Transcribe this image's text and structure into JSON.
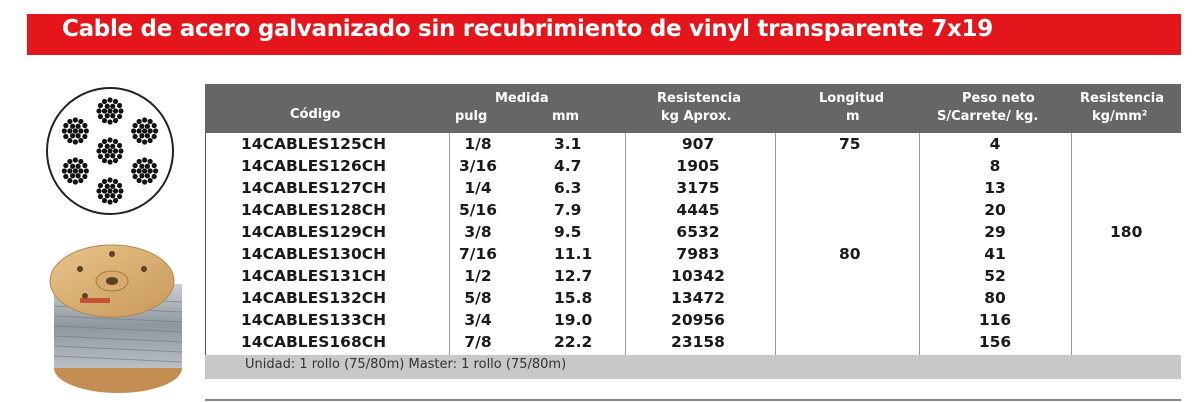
{
  "banner": {
    "title": "Cable de acero galvanizado sin recubrimiento de vinyl transparente 7x19"
  },
  "table": {
    "headers": {
      "codigo": "Código",
      "medida": "Medida",
      "pulg": "pulg",
      "mm": "mm",
      "resistencia": "Resistencia",
      "kg_aprox": "kg Aprox.",
      "longitud": "Longitud",
      "m": "m",
      "peso_neto": "Peso neto",
      "s_carrete": "S/Carrete/ kg.",
      "resistencia2": "Resistencia",
      "kg_mm2": "kg/mm²"
    },
    "rows": [
      {
        "codigo": "14CABLES125CH",
        "pulg": "1/8",
        "mm": "3.1",
        "kg": "907",
        "peso": "4"
      },
      {
        "codigo": "14CABLES126CH",
        "pulg": "3/16",
        "mm": "4.7",
        "kg": "1905",
        "peso": "8"
      },
      {
        "codigo": "14CABLES127CH",
        "pulg": "1/4",
        "mm": "6.3",
        "kg": "3175",
        "peso": "13"
      },
      {
        "codigo": "14CABLES128CH",
        "pulg": "5/16",
        "mm": "7.9",
        "kg": "4445",
        "peso": "20"
      },
      {
        "codigo": "14CABLES129CH",
        "pulg": "3/8",
        "mm": "9.5",
        "kg": "6532",
        "peso": "29"
      },
      {
        "codigo": "14CABLES130CH",
        "pulg": "7/16",
        "mm": "11.1",
        "kg": "7983",
        "peso": "41"
      },
      {
        "codigo": "14CABLES131CH",
        "pulg": "1/2",
        "mm": "12.7",
        "kg": "10342",
        "peso": "52"
      },
      {
        "codigo": "14CABLES132CH",
        "pulg": "5/8",
        "mm": "15.8",
        "kg": "13472",
        "peso": "80"
      },
      {
        "codigo": "14CABLES133CH",
        "pulg": "3/4",
        "mm": "19.0",
        "kg": "20956",
        "peso": "116"
      },
      {
        "codigo": "14CABLES168CH",
        "pulg": "7/8",
        "mm": "22.2",
        "kg": "23158",
        "peso": "156"
      }
    ],
    "longitud_values": [
      "75",
      "80"
    ],
    "resistencia_value": "180"
  },
  "footer": {
    "text": "Unidad: 1 rollo (75/80m)   Master: 1 rollo (75/80m)"
  },
  "colors": {
    "banner": "#e5161b",
    "header": "#666666",
    "footer": "#c8c8c8"
  }
}
